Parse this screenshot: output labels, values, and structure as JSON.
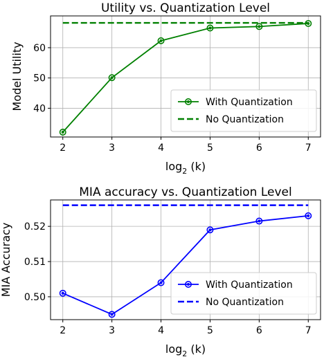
{
  "chart_data": [
    {
      "type": "line",
      "title": "Utility vs. Quantization Level",
      "xlabel_main": "log",
      "xlabel_sub": "2",
      "xlabel_var": "(k)",
      "ylabel": "Model Utility",
      "x": [
        2,
        3,
        4,
        5,
        6,
        7
      ],
      "xlim": [
        1.75,
        7.25
      ],
      "ylim": [
        30.5,
        70.5
      ],
      "yticks": [
        40,
        50,
        60
      ],
      "ytick_labels": [
        "40",
        "50",
        "60"
      ],
      "grid": true,
      "legend_placement": "lower-right",
      "series": [
        {
          "name": "With Quantization",
          "style": "solid-marker",
          "color": "#008000",
          "values": [
            32.1,
            50.1,
            62.3,
            66.5,
            67.0,
            68.0
          ]
        },
        {
          "name": "No Quantization",
          "style": "dashed",
          "color": "#008000",
          "values": [
            68.2,
            68.2,
            68.2,
            68.2,
            68.2,
            68.2
          ]
        }
      ]
    },
    {
      "type": "line",
      "title": "MIA accuracy vs. Quantization Level",
      "xlabel_main": "log",
      "xlabel_sub": "2",
      "xlabel_var": "(k)",
      "ylabel": "MIA Accuracy",
      "x": [
        2,
        3,
        4,
        5,
        6,
        7
      ],
      "xlim": [
        1.75,
        7.25
      ],
      "ylim": [
        0.4935,
        0.5275
      ],
      "yticks": [
        0.5,
        0.51,
        0.52
      ],
      "ytick_labels": [
        "0.50",
        "0.51",
        "0.52"
      ],
      "grid": true,
      "legend_placement": "lower-right",
      "series": [
        {
          "name": "With Quantization",
          "style": "solid-marker",
          "color": "#0000ff",
          "values": [
            0.501,
            0.495,
            0.504,
            0.519,
            0.5215,
            0.523
          ]
        },
        {
          "name": "No Quantization",
          "style": "dashed",
          "color": "#0000ff",
          "values": [
            0.526,
            0.526,
            0.526,
            0.526,
            0.526,
            0.526
          ]
        }
      ]
    }
  ]
}
